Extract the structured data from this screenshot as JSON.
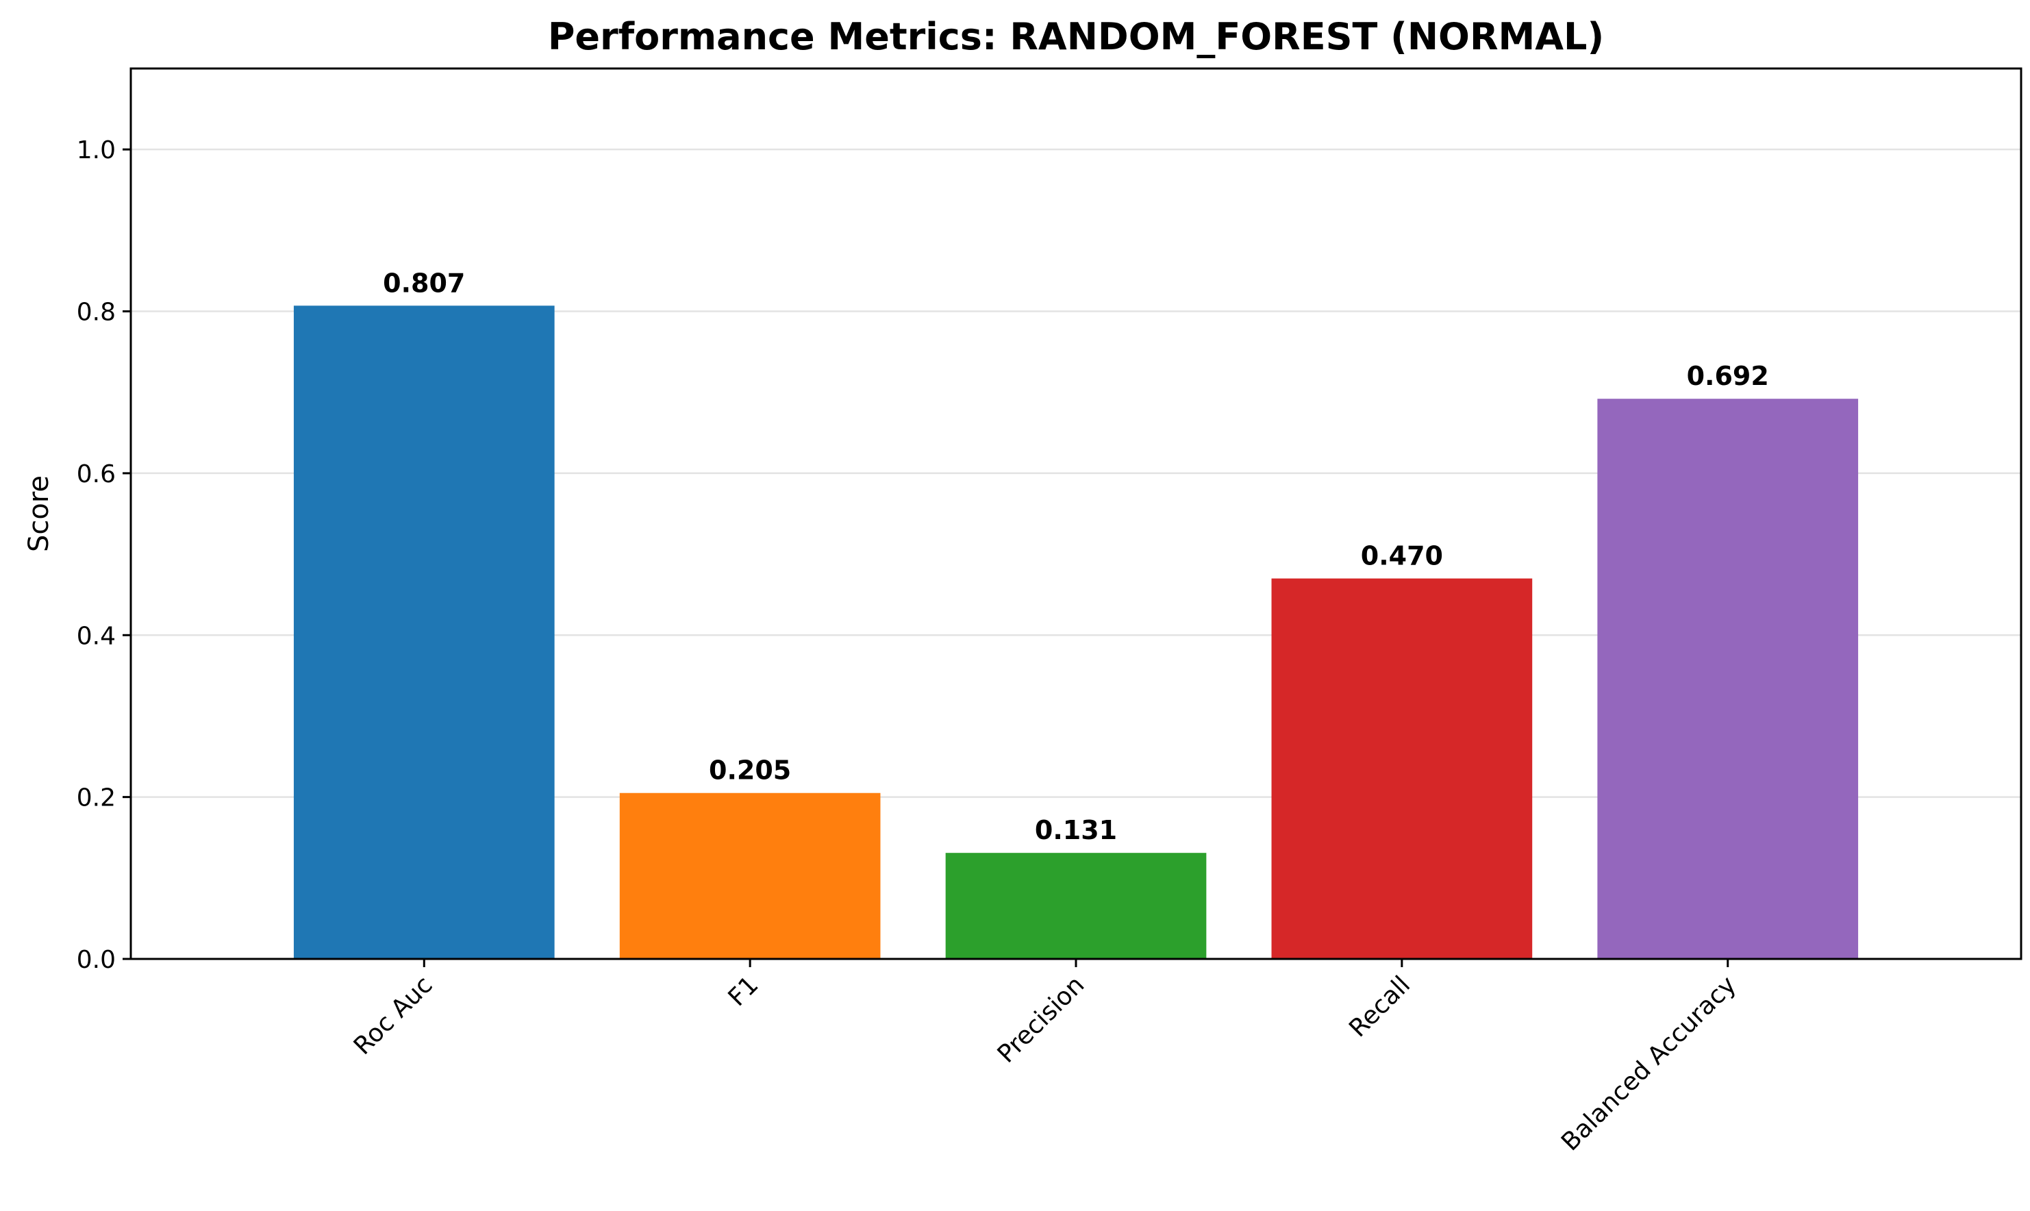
{
  "chart_data": {
    "type": "bar",
    "title": "Performance Metrics: RANDOM_FOREST (NORMAL)",
    "xlabel": "",
    "ylabel": "Score",
    "ylim": [
      0,
      1.1
    ],
    "yticks": [
      "0.0",
      "0.2",
      "0.4",
      "0.6",
      "0.8",
      "1.0"
    ],
    "grid": "y",
    "categories": [
      "Roc Auc",
      "F1",
      "Precision",
      "Recall",
      "Balanced Accuracy"
    ],
    "values": [
      0.807,
      0.205,
      0.131,
      0.47,
      0.692
    ],
    "value_labels": [
      "0.807",
      "0.205",
      "0.131",
      "0.470",
      "0.692"
    ],
    "colors": [
      "#1f77b4",
      "#ff7f0e",
      "#2ca02c",
      "#d62728",
      "#9467bd"
    ],
    "xtick_rotation_deg": 45
  }
}
